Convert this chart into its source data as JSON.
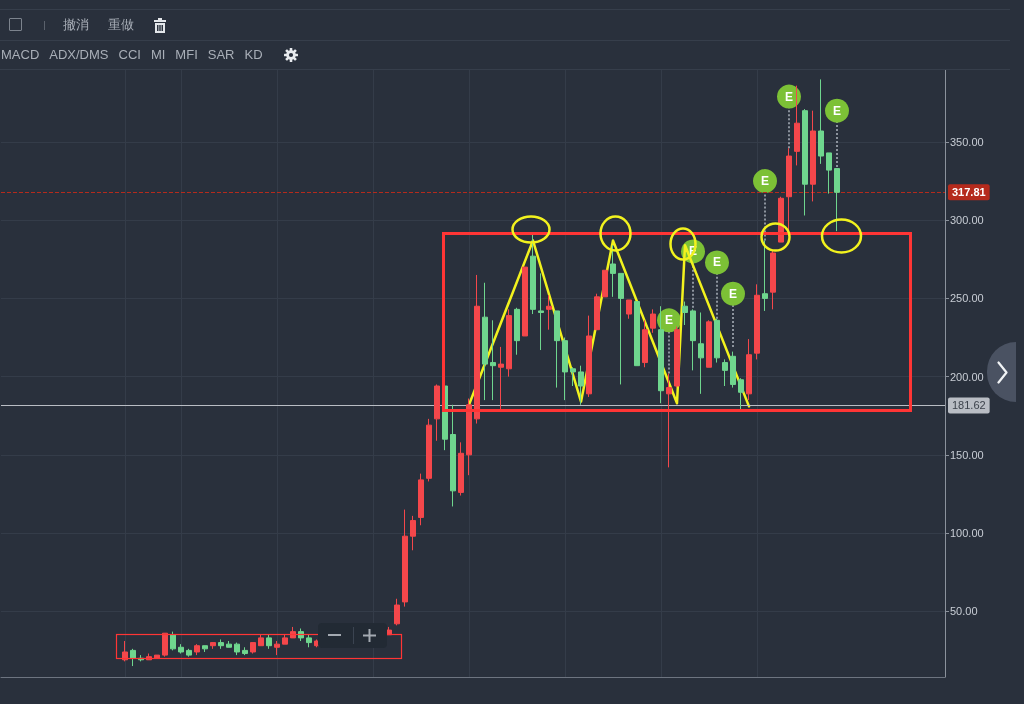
{
  "chart_data": {
    "type": "candlestick",
    "categories": [
      null,
      null,
      null,
      null,
      null,
      null,
      null,
      null,
      null,
      null,
      null,
      null,
      null,
      null,
      null,
      null,
      null,
      null,
      null,
      null,
      null,
      null,
      null,
      null,
      null,
      null,
      null,
      null,
      null,
      null,
      null,
      null,
      null,
      null,
      null,
      null,
      null,
      null,
      null,
      null,
      null,
      null,
      null,
      null,
      null,
      null,
      null,
      null,
      null,
      null,
      null,
      null,
      null,
      null,
      null,
      null,
      null,
      null,
      null,
      null,
      null,
      null,
      null,
      null,
      null,
      null,
      null,
      null,
      null,
      null,
      null,
      null,
      null,
      null,
      null,
      null,
      null,
      null,
      null,
      null,
      null,
      null,
      null,
      null,
      null,
      null,
      null,
      null,
      null,
      null,
      null,
      null,
      null,
      null,
      null,
      null,
      null,
      null,
      null,
      null,
      null,
      null,
      null,
      null,
      null,
      null,
      null,
      null,
      null,
      null,
      null,
      null,
      null,
      null,
      null,
      null,
      null,
      null
    ],
    "ohlc": [
      null,
      null,
      null,
      null,
      null,
      null,
      null,
      null,
      null,
      null,
      null,
      null,
      null,
      null,
      null,
      [
        19,
        31,
        18,
        24
      ],
      [
        25,
        26,
        15,
        20
      ],
      [
        20,
        22,
        18,
        19
      ],
      [
        19,
        23,
        19,
        21
      ],
      [
        20,
        22,
        20,
        22
      ],
      [
        22,
        36,
        21,
        36
      ],
      [
        35,
        37,
        25,
        26
      ],
      [
        27,
        29,
        23,
        24
      ],
      [
        25,
        26,
        21,
        22
      ],
      [
        24,
        29,
        22,
        28
      ],
      [
        28,
        28,
        24,
        26
      ],
      [
        28,
        30,
        26,
        30
      ],
      [
        30,
        32,
        26,
        28
      ],
      [
        29,
        31,
        27,
        27
      ],
      [
        29,
        30,
        22,
        24
      ],
      [
        25,
        27,
        22,
        23
      ],
      [
        24,
        30,
        23,
        30
      ],
      [
        28,
        35,
        28,
        33
      ],
      [
        33,
        35,
        26,
        28
      ],
      [
        27,
        31,
        22,
        29
      ],
      [
        29,
        35,
        29,
        33
      ],
      [
        33,
        40,
        33,
        37
      ],
      [
        37,
        39,
        31,
        33
      ],
      [
        33,
        35,
        27,
        30
      ],
      [
        28,
        32,
        27,
        31
      ],
      null,
      null,
      null,
      null,
      null,
      null,
      null,
      null,
      [
        35,
        40,
        35,
        38
      ],
      [
        42,
        58,
        41,
        54
      ],
      [
        56,
        115,
        53,
        98
      ],
      [
        98,
        111,
        89,
        108
      ],
      [
        110,
        138,
        105,
        134
      ],
      [
        135,
        173,
        133,
        169
      ],
      [
        173,
        195,
        159,
        194
      ],
      [
        194,
        195,
        153,
        160
      ],
      [
        163,
        182,
        117,
        127
      ],
      [
        126,
        158,
        124,
        151
      ],
      [
        150,
        186,
        137,
        182
      ],
      [
        173,
        265,
        170,
        245
      ],
      [
        238,
        260,
        185,
        208
      ],
      [
        209,
        236,
        185,
        207
      ],
      [
        206,
        219,
        179,
        208
      ],
      [
        205,
        243,
        200,
        239
      ],
      [
        243,
        244,
        214,
        223
      ],
      [
        226,
        270,
        226,
        270
      ],
      [
        277,
        291,
        240,
        243
      ],
      [
        242,
        266,
        217,
        241
      ],
      [
        243,
        252,
        230,
        245
      ],
      [
        242,
        242,
        193,
        223
      ],
      [
        223,
        225,
        185,
        203
      ],
      [
        205,
        206,
        194,
        203
      ],
      [
        203,
        207,
        182,
        194
      ],
      [
        189,
        239,
        187,
        226
      ],
      [
        230,
        253,
        230,
        251
      ],
      [
        251,
        268,
        251,
        268
      ],
      [
        272,
        284,
        251,
        266
      ],
      [
        266,
        266,
        195,
        250
      ],
      [
        240,
        249,
        237,
        249
      ],
      [
        248,
        248,
        207,
        207
      ],
      [
        209,
        236,
        206,
        230
      ],
      [
        231,
        243,
        228,
        240
      ],
      [
        230,
        245,
        183,
        191
      ],
      [
        189,
        202,
        142,
        193
      ],
      [
        194,
        232,
        193,
        230
      ],
      [
        245,
        248,
        233,
        241
      ],
      [
        242,
        243,
        204,
        223
      ],
      [
        221,
        241,
        189,
        212
      ],
      [
        206,
        236,
        206,
        235
      ],
      [
        236,
        237,
        209,
        212
      ],
      [
        209,
        211,
        194,
        204
      ],
      [
        213,
        216,
        193,
        195
      ],
      [
        198,
        199,
        179,
        190
      ],
      [
        189,
        224,
        185,
        214
      ],
      [
        215,
        259,
        211,
        252
      ],
      [
        253,
        287,
        242,
        250
      ],
      [
        254,
        281,
        243,
        279
      ],
      [
        286,
        315,
        286,
        314
      ],
      [
        315,
        346,
        292,
        341
      ],
      [
        344,
        386,
        335,
        362
      ],
      [
        370,
        371,
        303,
        323
      ],
      [
        323,
        370,
        312,
        357
      ],
      [
        357,
        390,
        336,
        341
      ],
      [
        343,
        343,
        317,
        332
      ],
      [
        333,
        333,
        293,
        317.81
      ],
      null,
      null,
      null,
      null,
      null,
      null,
      null,
      null,
      null,
      null,
      null,
      null,
      null
    ],
    "colors": [
      null,
      null,
      null,
      null,
      null,
      null,
      null,
      null,
      null,
      null,
      null,
      null,
      null,
      null,
      null,
      "#f4474b",
      "#6fd68e",
      "#6fd68e",
      "#f4474b",
      "#f4474b",
      "#f4474b",
      "#6fd68e",
      "#6fd68e",
      "#6fd68e",
      "#f4474b",
      "#6fd68e",
      "#f4474b",
      "#6fd68e",
      "#6fd68e",
      "#6fd68e",
      "#6fd68e",
      "#f4474b",
      "#f4474b",
      "#6fd68e",
      "#f4474b",
      "#f4474b",
      "#f4474b",
      "#6fd68e",
      "#6fd68e",
      "#f4474b",
      null,
      null,
      null,
      null,
      null,
      null,
      null,
      null,
      "#f4474b",
      "#f4474b",
      "#f4474b",
      "#f4474b",
      "#f4474b",
      "#f4474b",
      "#f4474b",
      "#6fd68e",
      "#6fd68e",
      "#f4474b",
      "#f4474b",
      "#f4474b",
      "#6fd68e",
      "#6fd68e",
      "#f4474b",
      "#f4474b",
      "#6fd68e",
      "#f4474b",
      "#6fd68e",
      "#6fd68e",
      "#f4474b",
      "#6fd68e",
      "#6fd68e",
      "#6fd68e",
      "#6fd68e",
      "#f4474b",
      "#f4474b",
      "#f4474b",
      "#6fd68e",
      "#6fd68e",
      "#f4474b",
      "#6fd68e",
      "#f4474b",
      "#f4474b",
      "#6fd68e",
      "#f4474b",
      "#f4474b",
      "#6fd68e",
      "#6fd68e",
      "#6fd68e",
      "#f4474b",
      "#6fd68e",
      "#6fd68e",
      "#6fd68e",
      "#6fd68e",
      "#f4474b",
      "#f4474b",
      "#6fd68e",
      "#f4474b",
      "#f4474b",
      "#f4474b",
      "#f4474b",
      "#6fd68e",
      "#f4474b",
      "#6fd68e",
      "#6fd68e",
      "#6fd68e",
      null,
      null,
      null,
      null,
      null,
      null,
      null,
      null,
      null,
      null,
      null,
      null,
      null
    ],
    "series": [
      {
        "type": "line",
        "color": "#f2f21e",
        "values": [
          null,
          null,
          null,
          null,
          null,
          null,
          null,
          null,
          null,
          null,
          null,
          null,
          null,
          null,
          null,
          null,
          null,
          null,
          null,
          null,
          null,
          null,
          null,
          null,
          null,
          null,
          null,
          null,
          null,
          null,
          null,
          null,
          null,
          null,
          null,
          null,
          null,
          null,
          null,
          null,
          null,
          null,
          null,
          null,
          null,
          null,
          null,
          null,
          null,
          null,
          null,
          null,
          null,
          null,
          null,
          null,
          null,
          null,
          182,
          null,
          null,
          null,
          null,
          null,
          null,
          null,
          287,
          null,
          null,
          null,
          null,
          null,
          184,
          null,
          null,
          null,
          287,
          null,
          null,
          null,
          null,
          null,
          null,
          null,
          183,
          284,
          null,
          null,
          null,
          null,
          null,
          null,
          null,
          181,
          null,
          null,
          null,
          null,
          null,
          null,
          null,
          null,
          null,
          null,
          null,
          null,
          null,
          null,
          null,
          null,
          null,
          null,
          null,
          null,
          null,
          null,
          null,
          null
        ]
      },
      {
        "type": "scatter",
        "color": "#7cc136",
        "marker": "circle",
        "values": [
          null,
          null,
          null,
          null,
          null,
          null,
          null,
          null,
          null,
          null,
          null,
          null,
          null,
          null,
          null,
          null,
          null,
          null,
          null,
          null,
          null,
          null,
          null,
          null,
          null,
          null,
          null,
          null,
          null,
          null,
          null,
          null,
          null,
          null,
          null,
          null,
          null,
          null,
          null,
          null,
          null,
          null,
          null,
          null,
          null,
          null,
          null,
          null,
          null,
          null,
          null,
          null,
          null,
          null,
          null,
          null,
          null,
          null,
          null,
          null,
          null,
          null,
          null,
          null,
          null,
          null,
          null,
          null,
          null,
          null,
          null,
          null,
          null,
          null,
          null,
          null,
          null,
          null,
          null,
          null,
          null,
          null,
          null,
          236,
          null,
          null,
          280,
          null,
          null,
          273,
          null,
          253,
          null,
          null,
          null,
          325,
          null,
          null,
          379,
          null,
          null,
          null,
          null,
          null,
          370,
          null,
          null,
          null,
          null,
          null,
          null,
          null,
          null,
          null,
          null,
          null,
          null,
          null
        ],
        "value_labels": [
          null,
          null,
          null,
          null,
          null,
          null,
          null,
          null,
          null,
          null,
          null,
          null,
          null,
          null,
          null,
          null,
          null,
          null,
          null,
          null,
          null,
          null,
          null,
          null,
          null,
          null,
          null,
          null,
          null,
          null,
          null,
          null,
          null,
          null,
          null,
          null,
          null,
          null,
          null,
          null,
          null,
          null,
          null,
          null,
          null,
          null,
          null,
          null,
          null,
          null,
          null,
          null,
          null,
          null,
          null,
          null,
          null,
          null,
          null,
          null,
          null,
          null,
          null,
          null,
          null,
          null,
          null,
          null,
          null,
          null,
          null,
          null,
          null,
          null,
          null,
          null,
          null,
          null,
          null,
          null,
          null,
          null,
          null,
          "E",
          null,
          null,
          "E",
          null,
          null,
          "E",
          null,
          "E",
          null,
          null,
          null,
          "E",
          null,
          null,
          "E",
          null,
          null,
          null,
          null,
          null,
          "E",
          null,
          null,
          null,
          null,
          null,
          null,
          null,
          null,
          null,
          null,
          null,
          null,
          null
        ],
        "errors": [
          null,
          null,
          null,
          null,
          null,
          null,
          null,
          null,
          null,
          null,
          null,
          null,
          null,
          null,
          null,
          null,
          null,
          null,
          null,
          null,
          null,
          null,
          null,
          null,
          null,
          null,
          null,
          null,
          null,
          null,
          null,
          null,
          null,
          null,
          null,
          null,
          null,
          null,
          null,
          null,
          null,
          null,
          null,
          null,
          null,
          null,
          null,
          null,
          null,
          null,
          null,
          null,
          null,
          null,
          null,
          null,
          null,
          null,
          null,
          null,
          null,
          null,
          null,
          null,
          null,
          null,
          null,
          null,
          null,
          null,
          null,
          null,
          null,
          null,
          null,
          null,
          null,
          null,
          null,
          null,
          null,
          null,
          null,
          [
            202,
            236
          ],
          null,
          null,
          [
            244,
            280
          ],
          null,
          null,
          [
            237,
            273
          ],
          null,
          [
            219,
            253
          ],
          null,
          null,
          null,
          [
            287,
            325
          ],
          null,
          null,
          [
            346,
            379
          ],
          null,
          null,
          null,
          null,
          null,
          [
            334,
            370
          ],
          null,
          null,
          null,
          null,
          null,
          null,
          null,
          null,
          null,
          null,
          null,
          null,
          null
        ]
      }
    ],
    "ylim": [
      8,
      396
    ],
    "yticks": [
      {
        "value": 50,
        "label": "50.00"
      },
      {
        "value": 100,
        "label": "100.00"
      },
      {
        "value": 150,
        "label": "150.00"
      },
      {
        "value": 200,
        "label": "200.00"
      },
      {
        "value": 250,
        "label": "250.00"
      },
      {
        "value": 300,
        "label": "300.00"
      },
      {
        "value": 350,
        "label": "350.00"
      }
    ],
    "grid": true,
    "ref_lines": [
      {
        "axis": "y",
        "value": 317.81,
        "label": "317.81",
        "color": "#b52a1c",
        "line_style": "dashed"
      },
      {
        "axis": "y",
        "value": 181.62,
        "label": "181.62",
        "color": "#b9bdc4"
      }
    ],
    "annotations": [
      "撤消",
      "重做",
      "MACD",
      "ADX/DMS",
      "CCI",
      "MI",
      "MFI",
      "SAR",
      "KD"
    ]
  }
}
